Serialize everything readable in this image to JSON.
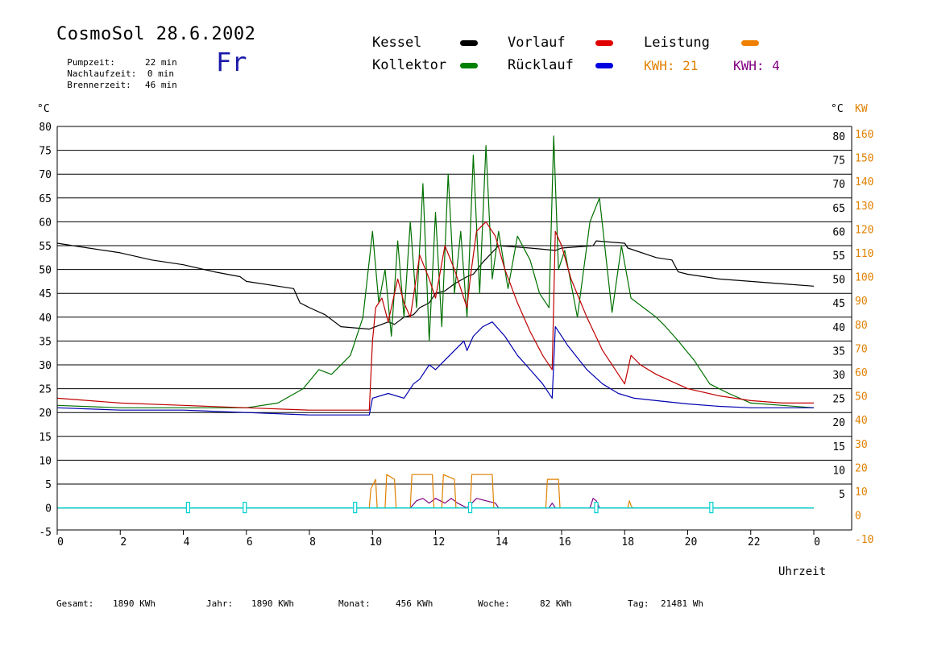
{
  "header": {
    "title": "CosmoSol 28.6.2002",
    "day": "Fr",
    "timers": [
      {
        "label": "Pumpzeit:",
        "value": "22 min"
      },
      {
        "label": "Nachlaufzeit:",
        "value": "0 min"
      },
      {
        "label": "Brennerzeit:",
        "value": "46 min"
      }
    ]
  },
  "legend": {
    "kessel": "Kessel",
    "vorlauf": "Vorlauf",
    "leistung": "Leistung",
    "kollektor": "Kollektor",
    "ruecklauf": "Rücklauf",
    "kwh1": "KWH: 21",
    "kwh2": "KWH: 4"
  },
  "footer": {
    "gesamt_label": "Gesamt:",
    "gesamt": "1890 KWh",
    "jahr_label": "Jahr:",
    "jahr": "1890 KWh",
    "monat_label": "Monat:",
    "monat": "456 KWh",
    "woche_label": "Woche:",
    "woche": "82 KWh",
    "tag_label": "Tag:",
    "tag": "21481 Wh"
  },
  "colors": {
    "kessel": "#000000",
    "vorlauf": "#c00000",
    "leistung": "#e08000",
    "kollektor": "#007000",
    "ruecklauf": "#0000b0",
    "kwh2": "#800080",
    "pump": "#00d0d0",
    "grid": "#000000"
  },
  "chart_data": {
    "type": "line",
    "xlabel": "Uhrzeit",
    "ylabel_left": "°C",
    "ylabel_right_1": "°C",
    "ylabel_right_2": "KW",
    "xlim": [
      0,
      24
    ],
    "ylim": [
      -5,
      80
    ],
    "x_ticks": [
      "0",
      "2",
      "4",
      "6",
      "8",
      "10",
      "12",
      "14",
      "16",
      "18",
      "20",
      "22",
      "0"
    ],
    "y_ticks_left": [
      "80",
      "75",
      "70",
      "65",
      "60",
      "55",
      "50",
      "45",
      "40",
      "35",
      "30",
      "25",
      "20",
      "15",
      "10",
      "5",
      "0",
      "-5"
    ],
    "y_ticks_right_temp": [
      "80",
      "75",
      "70",
      "65",
      "60",
      "55",
      "50",
      "45",
      "40",
      "35",
      "30",
      "25",
      "20",
      "15",
      "10",
      "5"
    ],
    "y_ticks_right_kw": [
      "160",
      "150",
      "140",
      "130",
      "120",
      "110",
      "100",
      "90",
      "80",
      "70",
      "60",
      "50",
      "40",
      "30",
      "20",
      "10",
      "0",
      "-10"
    ],
    "series": [
      {
        "name": "Kessel",
        "key": "kessel",
        "x": [
          0,
          1,
          2,
          3,
          4,
          5,
          5.8,
          6,
          7,
          7.5,
          7.7,
          8,
          8.5,
          9,
          9.9,
          10.5,
          10.7,
          11,
          11.3,
          11.5,
          11.8,
          12,
          12.3,
          12.6,
          13,
          13.2,
          13.5,
          14,
          15,
          15.8,
          16,
          17,
          17.1,
          18,
          18.1,
          19,
          19.5,
          19.7,
          20,
          21,
          22,
          23,
          24
        ],
        "y": [
          55.5,
          54.5,
          53.5,
          52,
          51,
          49.5,
          48.5,
          47.5,
          46.5,
          46,
          43,
          42,
          40.5,
          38,
          37.5,
          39,
          38.5,
          40,
          40.5,
          42,
          43,
          45,
          45.5,
          47,
          48.5,
          49,
          51.5,
          55,
          54.5,
          54,
          54.5,
          55,
          56,
          55.5,
          54.5,
          52.5,
          52,
          49.5,
          49,
          48,
          47.5,
          47,
          46.5
        ]
      },
      {
        "name": "Vorlauf",
        "key": "vorlauf",
        "x": [
          0,
          2,
          4,
          6,
          8,
          9.9,
          10,
          10.1,
          10.3,
          10.5,
          10.8,
          11,
          11.2,
          11.5,
          11.8,
          12,
          12.3,
          12.6,
          13,
          13.1,
          13.3,
          13.6,
          13.9,
          14.2,
          14.6,
          15,
          15.4,
          15.7,
          15.8,
          16,
          16.3,
          16.8,
          17.3,
          18,
          18.2,
          18.5,
          19,
          20,
          21,
          22,
          23,
          24
        ],
        "y": [
          23,
          22,
          21.5,
          21,
          20.5,
          20.5,
          35,
          42,
          44,
          39,
          48,
          43,
          40,
          53,
          48,
          44,
          55,
          50,
          42,
          48,
          58,
          60,
          57,
          50,
          43,
          37,
          32,
          29,
          58,
          55,
          48,
          40,
          33,
          26,
          32,
          30,
          28,
          25,
          23.5,
          22.5,
          22,
          22
        ]
      },
      {
        "name": "Kollektor",
        "key": "kollektor",
        "x": [
          0,
          2,
          4,
          6,
          7,
          7.8,
          8.3,
          8.7,
          9.3,
          9.7,
          10,
          10.2,
          10.4,
          10.6,
          10.8,
          11,
          11.2,
          11.4,
          11.6,
          11.8,
          12,
          12.2,
          12.4,
          12.6,
          12.8,
          13,
          13.2,
          13.4,
          13.6,
          13.8,
          14,
          14.3,
          14.6,
          15,
          15.3,
          15.6,
          15.75,
          15.9,
          16.1,
          16.5,
          16.9,
          17.2,
          17.6,
          17.9,
          18.2,
          18.6,
          19,
          19.3,
          19.7,
          20.2,
          20.7,
          21.3,
          22,
          23,
          24
        ],
        "y": [
          21.5,
          21,
          21,
          21,
          22,
          25,
          29,
          28,
          32,
          40,
          58,
          43,
          50,
          36,
          56,
          40,
          60,
          42,
          68,
          35,
          62,
          38,
          70,
          45,
          58,
          40,
          74,
          45,
          76,
          48,
          58,
          46,
          57,
          52,
          45,
          42,
          78,
          50,
          54,
          40,
          60,
          65,
          41,
          55,
          44,
          42,
          40,
          38,
          35,
          31,
          26,
          24,
          22,
          21.5,
          21
        ]
      },
      {
        "name": "Rücklauf",
        "key": "ruecklauf",
        "x": [
          0,
          2,
          4,
          6,
          8,
          9.9,
          10,
          10.5,
          11,
          11.3,
          11.5,
          11.8,
          12,
          12.3,
          12.6,
          12.9,
          13,
          13.2,
          13.5,
          13.8,
          14.2,
          14.6,
          15,
          15.4,
          15.7,
          15.8,
          16.2,
          16.8,
          17.3,
          17.8,
          18.3,
          19,
          20,
          21,
          22,
          23,
          24
        ],
        "y": [
          21,
          20.5,
          20.5,
          20,
          19.5,
          19.5,
          23,
          24,
          23,
          26,
          27,
          30,
          29,
          31,
          33,
          35,
          33,
          36,
          38,
          39,
          36,
          32,
          29,
          26,
          23,
          38,
          34,
          29,
          26,
          24,
          23,
          22.5,
          21.8,
          21.3,
          21,
          21,
          21
        ]
      },
      {
        "name": "Leistung",
        "key": "leistung",
        "x": [
          0,
          9.9,
          9.95,
          10.1,
          10.15,
          10.4,
          10.45,
          10.7,
          10.75,
          11.2,
          11.25,
          11.9,
          11.95,
          12.2,
          12.25,
          12.6,
          12.65,
          13.1,
          13.15,
          13.8,
          13.85,
          15.5,
          15.55,
          15.9,
          15.95,
          18.1,
          18.15,
          18.2,
          18.25,
          24
        ],
        "y": [
          0,
          0,
          4,
          6,
          0,
          0,
          7,
          6,
          0,
          0,
          7,
          7,
          0,
          0,
          7,
          6,
          0,
          0,
          7,
          7,
          0,
          0,
          6,
          6,
          0,
          0,
          1.5,
          0.5,
          0,
          0
        ]
      },
      {
        "name": "KWH: 4",
        "key": "kwh2",
        "x": [
          0,
          11.2,
          11.4,
          11.6,
          11.8,
          12,
          12.3,
          12.5,
          12.7,
          13,
          13.3,
          13.6,
          13.9,
          14,
          15.6,
          15.7,
          15.8,
          16.9,
          17,
          17.1,
          17.2,
          24
        ],
        "y": [
          0,
          0,
          1.5,
          2,
          1,
          2,
          1,
          2,
          1,
          0,
          2,
          1.5,
          1,
          0,
          0,
          1,
          0,
          0,
          2,
          1.5,
          0,
          0
        ]
      }
    ],
    "pump_markers": [
      4.15,
      5.95,
      9.45,
      13.1,
      17.1,
      20.75
    ],
    "pump_marker_level": 0
  }
}
